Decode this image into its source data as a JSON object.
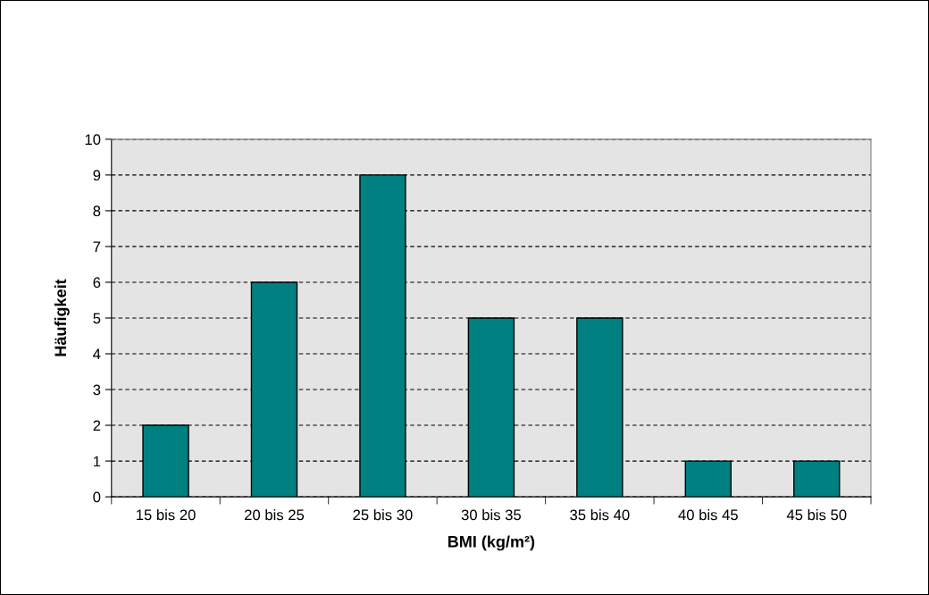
{
  "chart_data": {
    "type": "bar",
    "xlabel": "BMI (kg/m²)",
    "ylabel": "Häufigkeit",
    "categories": [
      "15 bis 20",
      "20 bis 25",
      "25 bis 30",
      "30 bis 35",
      "35 bis 40",
      "40 bis 45",
      "45 bis 50"
    ],
    "values": [
      2,
      6,
      9,
      5,
      5,
      1,
      1
    ],
    "color": "#008080",
    "ylim": [
      0,
      10
    ],
    "yticks": [
      0,
      1,
      2,
      3,
      4,
      5,
      6,
      7,
      8,
      9,
      10
    ],
    "grid": "y",
    "line_style": "dashed"
  }
}
